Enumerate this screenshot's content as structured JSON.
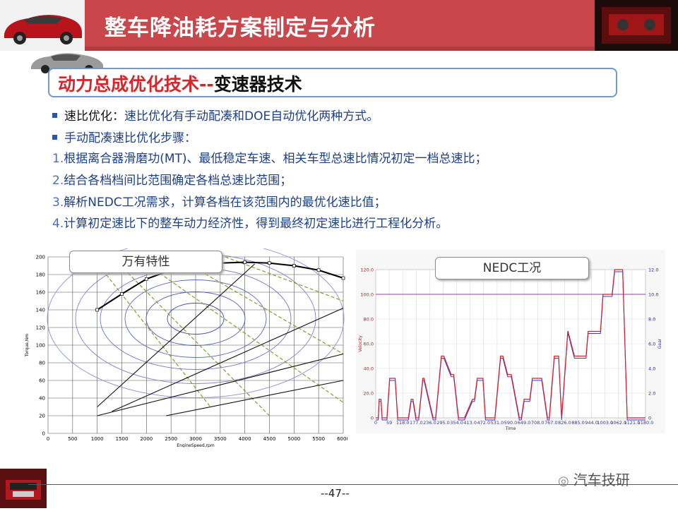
{
  "header": {
    "title": "整车降油耗方案制定与分析"
  },
  "subtitle": {
    "red": "动力总成优化技术--",
    "black": "变速器技术"
  },
  "bullets": [
    {
      "head": "速比优化：",
      "text": "速比优化有手动配凑和DOE自动优化两种方式。"
    },
    {
      "text": "手动配凑速比优化步骤："
    }
  ],
  "steps": [
    {
      "num": "1.",
      "text": "根据离合器滑磨功(MT)、最低稳定车速、相关车型总速比情况初定一档总速比；"
    },
    {
      "num": "2.",
      "text": "结合各档档间比范围确定各档总速比范围；"
    },
    {
      "num": "3.",
      "text": "解析NEDC工况需求，计算各档在该范围内的最优化速比值；"
    },
    {
      "num": "4.",
      "text": "计算初定速比下的整车动力经济性，得到最终初定速比进行工程化分析。"
    }
  ],
  "charts": {
    "left": {
      "label": "万有特性",
      "x_ticks": [
        "0",
        "500",
        "1000",
        "1500",
        "2000",
        "2500",
        "3000",
        "3500",
        "4000",
        "4500",
        "5000",
        "5500",
        "6000"
      ],
      "y_ticks": [
        "0",
        "20",
        "40",
        "60",
        "80",
        "100",
        "120",
        "140",
        "160",
        "180",
        "200"
      ],
      "xlabel": "EngineSpeed,rpm",
      "ylabel": "Torque,Nm"
    },
    "right": {
      "label": "NEDC工况",
      "x_ticks": [
        "0",
        "59",
        "118.0",
        "177.0",
        "236.0",
        "295.0",
        "354.0",
        "413.0",
        "472.0",
        "531.0",
        "590.0",
        "649.0",
        "708.0",
        "767.0",
        "826.0",
        "885.0",
        "944.0",
        "1003.0",
        "1062.0",
        "1121.0",
        "1180.0"
      ],
      "y_ticks": [
        "0",
        "20.0",
        "40.0",
        "60.0",
        "80.0",
        "100.0",
        "120.0"
      ],
      "y2_ticks": [
        "0",
        "2.0",
        "4.0",
        "6.0",
        "8.0",
        "10.0",
        "12.0"
      ],
      "xlabel": "Time",
      "ylabel": "Velocity",
      "y2label": "Gear"
    }
  },
  "chart_data": [
    {
      "type": "scatter",
      "title": "万有特性",
      "xlabel": "EngineSpeed,rpm",
      "ylabel": "Torque,Nm",
      "xlim": [
        0,
        6000
      ],
      "ylim": [
        0,
        200
      ],
      "series": [
        {
          "name": "",
          "x": [
            1000,
            1500,
            2000,
            2500,
            3000,
            3500,
            4000,
            4500,
            5000,
            5500,
            6000
          ],
          "y": [
            140,
            158,
            175,
            185,
            190,
            193,
            194,
            193,
            190,
            185,
            176
          ]
        }
      ]
    },
    {
      "type": "line",
      "title": "NEDC工况",
      "xlabel": "Time",
      "ylabel": "Velocity",
      "xlim": [
        0,
        1180
      ],
      "ylim": [
        0,
        120
      ],
      "series": [
        {
          "name": "",
          "x": [
            0,
            11,
            15,
            23,
            28,
            49,
            61,
            85,
            96,
            117,
            143,
            155,
            163,
            176,
            188,
            206,
            211,
            251,
            262,
            287,
            298,
            330,
            341,
            362,
            363,
            388,
            423,
            432,
            444,
            469,
            480,
            521,
            546,
            556,
            577,
            593,
            628,
            637,
            649,
            674,
            685,
            726,
            751,
            759,
            781,
            800,
            813,
            840,
            841,
            869,
            920,
            929,
            983,
            994,
            1034,
            1045,
            1080,
            1100,
            1132,
            1152,
            1180
          ],
          "y": [
            0,
            0,
            15,
            15,
            0,
            0,
            32,
            32,
            0,
            0,
            0,
            15,
            15,
            0,
            0,
            32,
            32,
            0,
            0,
            50,
            50,
            35,
            35,
            0,
            0,
            0,
            15,
            15,
            32,
            32,
            0,
            0,
            50,
            50,
            35,
            35,
            0,
            0,
            15,
            15,
            32,
            32,
            0,
            0,
            50,
            50,
            0,
            70,
            70,
            50,
            50,
            70,
            70,
            100,
            100,
            120,
            120,
            0,
            0,
            0,
            0
          ]
        }
      ]
    }
  ],
  "page": {
    "number": "--47--"
  },
  "brand": {
    "name": "汽车技研"
  },
  "colors": {
    "header": "#c9464b",
    "subtitle_red": "#d5262b",
    "text_blue": "#1e3f8a"
  }
}
